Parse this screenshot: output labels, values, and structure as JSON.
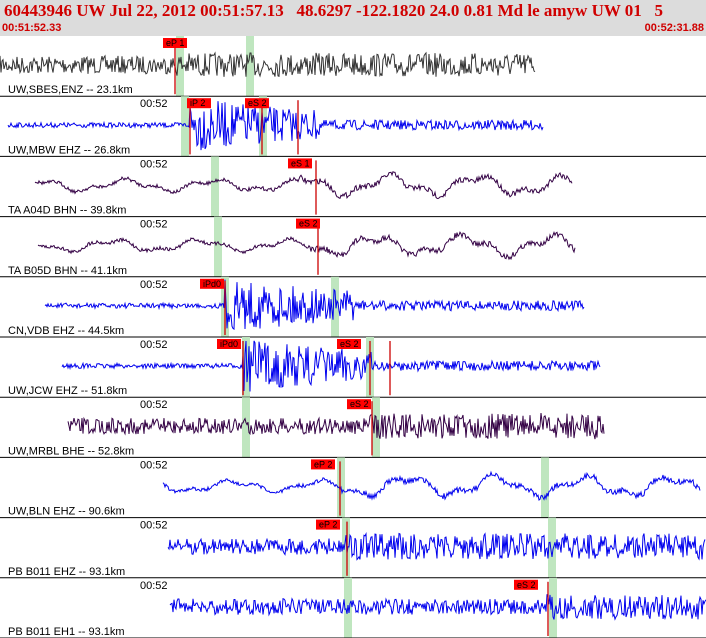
{
  "header": {
    "title": "60443946 UW Jul 22, 2012 00:51:57.13   48.6297 -122.1820 24.0 0.81 Md le amyw UW 01   5",
    "start_time": "00:51:52.33",
    "end_time": "00:52:31.88"
  },
  "colors": {
    "header_bg": "#dcdcdc",
    "header_text": "#d00000",
    "pick_box": "#ff0000",
    "pick_line": "#cc0000",
    "predicted_band": "#bfe6bf",
    "trace_blue": "#0000ee",
    "trace_purple": "#330044",
    "trace_gray": "#333333"
  },
  "traces": [
    {
      "label": "UW,SBES,ENZ -- 23.1km",
      "time_label": "",
      "color": "#333333",
      "picks": [
        {
          "text": "eP 1"
        }
      ],
      "style": "dense"
    },
    {
      "label": "UW,MBW EHZ -- 26.8km",
      "time_label": "00:52",
      "color": "#0000ee",
      "picks": [
        {
          "text": "iP 2"
        },
        {
          "text": "eS 2"
        }
      ],
      "style": "burst"
    },
    {
      "label": "TA A04D BHN -- 39.8km",
      "time_label": "00:52",
      "color": "#330044",
      "picks": [
        {
          "text": "eS 1"
        }
      ],
      "style": "wavy"
    },
    {
      "label": "TA B05D BHN -- 41.1km",
      "time_label": "00:52",
      "color": "#330044",
      "picks": [
        {
          "text": "eS 2"
        }
      ],
      "style": "wavy"
    },
    {
      "label": "CN,VDB EHZ -- 44.5km",
      "time_label": "00:52",
      "color": "#0000ee",
      "picks": [
        {
          "text": "iPd0"
        }
      ],
      "style": "burst"
    },
    {
      "label": "UW,JCW EHZ -- 51.8km",
      "time_label": "00:52",
      "color": "#0000ee",
      "picks": [
        {
          "text": "iPd0"
        },
        {
          "text": "eS 2"
        }
      ],
      "style": "burst"
    },
    {
      "label": "UW,MRBL BHE -- 52.8km",
      "time_label": "00:52",
      "color": "#330044",
      "picks": [
        {
          "text": "eS 2"
        }
      ],
      "style": "noisy"
    },
    {
      "label": "UW,BLN EHZ -- 90.6km",
      "time_label": "00:52",
      "color": "#0000ee",
      "picks": [
        {
          "text": "eP 2"
        }
      ],
      "style": "wavy"
    },
    {
      "label": "PB B011 EHZ -- 93.1km",
      "time_label": "00:52",
      "color": "#0000ee",
      "picks": [
        {
          "text": "eP 2"
        }
      ],
      "style": "noisy"
    },
    {
      "label": "PB B011 EH1 -- 93.1km",
      "time_label": "00:52",
      "color": "#0000ee",
      "picks": [
        {
          "text": "eS 2"
        }
      ],
      "style": "noisy"
    }
  ]
}
